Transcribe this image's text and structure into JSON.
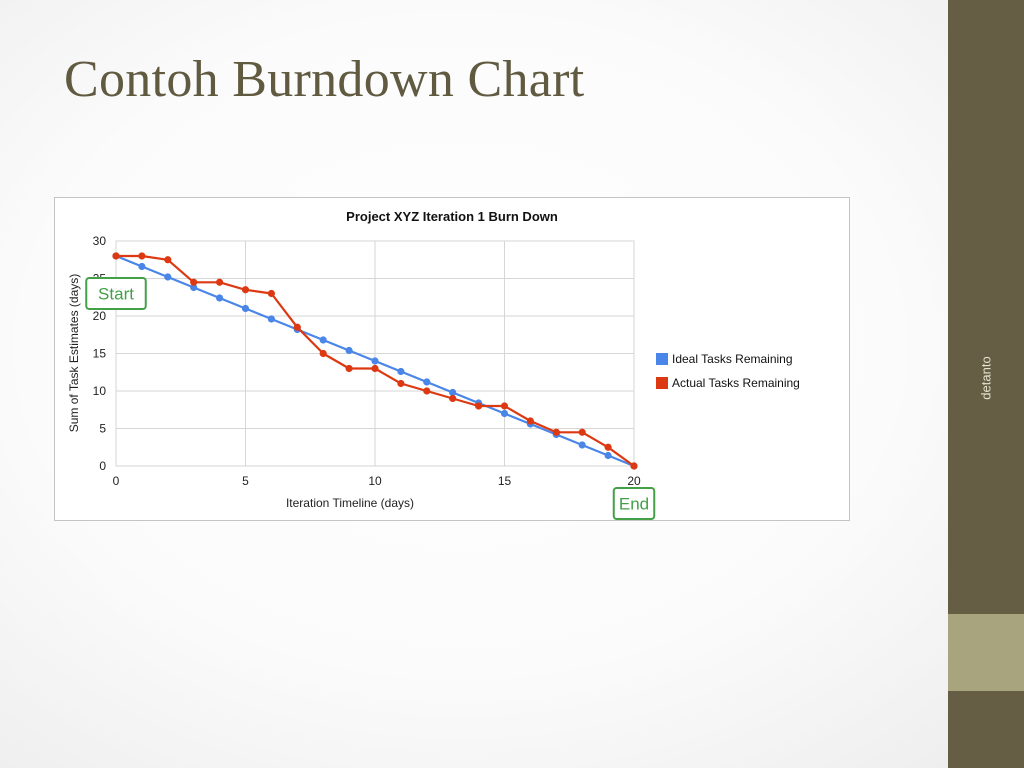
{
  "slide": {
    "title": "Contoh Burndown Chart",
    "side_label": "detanto"
  },
  "colors": {
    "sidebar": "#655e45",
    "sidebar_accent": "#a8a47d",
    "title_text": "#5f5a40",
    "ideal": "#4a86e8",
    "actual": "#dc3912",
    "marker": "#43a047"
  },
  "chart_data": {
    "type": "line",
    "title": "Project XYZ Iteration 1 Burn Down",
    "xlabel": "Iteration Timeline (days)",
    "ylabel": "Sum of Task Estimates (days)",
    "xlim": [
      0,
      20
    ],
    "ylim": [
      0,
      30
    ],
    "xticks": [
      0,
      5,
      10,
      15,
      20
    ],
    "yticks": [
      0,
      5,
      10,
      15,
      20,
      25,
      30
    ],
    "grid": true,
    "legend_position": "right",
    "x": [
      0,
      1,
      2,
      3,
      4,
      5,
      6,
      7,
      8,
      9,
      10,
      11,
      12,
      13,
      14,
      15,
      16,
      17,
      18,
      19,
      20
    ],
    "series": [
      {
        "name": "Ideal Tasks Remaining",
        "color": "#4a86e8",
        "values": [
          28,
          26.6,
          25.2,
          23.8,
          22.4,
          21,
          19.6,
          18.2,
          16.8,
          15.4,
          14,
          12.6,
          11.2,
          9.8,
          8.4,
          7,
          5.6,
          4.2,
          2.8,
          1.4,
          0
        ]
      },
      {
        "name": "Actual Tasks Remaining",
        "color": "#dc3912",
        "values": [
          28,
          28,
          27.5,
          24.5,
          24.5,
          23.5,
          23,
          18.5,
          15,
          13,
          13,
          11,
          10,
          9,
          8,
          8,
          6,
          4.5,
          4.5,
          2.5,
          0
        ]
      }
    ],
    "annotations": [
      {
        "text": "Start",
        "x": 0,
        "y": 23
      },
      {
        "text": "End",
        "x": 20,
        "y": -5
      }
    ]
  }
}
